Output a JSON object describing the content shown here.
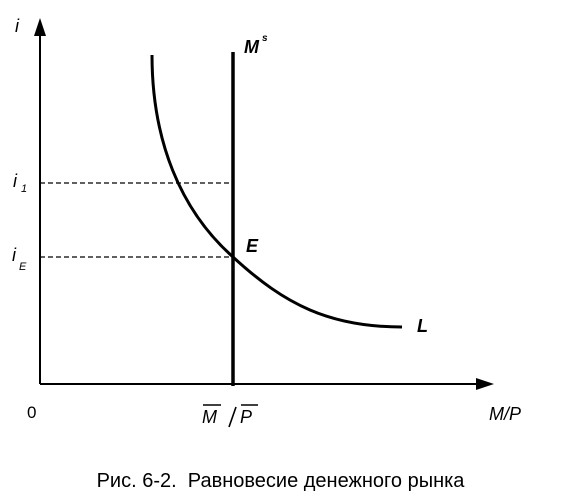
{
  "diagram": {
    "axes": {
      "y_label": "i",
      "x_label": "M/P",
      "origin_label": "0"
    },
    "levels": {
      "i1": {
        "label": "i",
        "sub": "1"
      },
      "iE": {
        "label": "i",
        "sub": "E"
      }
    },
    "supply": {
      "label": "M",
      "label_sup": "s",
      "x_label_num": "M",
      "x_label_den": "P"
    },
    "demand": {
      "label": "L"
    },
    "equilibrium": {
      "label": "E"
    }
  },
  "caption": {
    "text": "Рис. 6-2.  Равновесие денежного рынка"
  }
}
